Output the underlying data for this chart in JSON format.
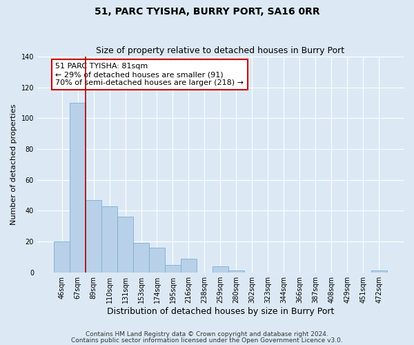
{
  "title": "51, PARC TYISHA, BURRY PORT, SA16 0RR",
  "subtitle": "Size of property relative to detached houses in Burry Port",
  "xlabel": "Distribution of detached houses by size in Burry Port",
  "ylabel": "Number of detached properties",
  "bar_labels": [
    "46sqm",
    "67sqm",
    "89sqm",
    "110sqm",
    "131sqm",
    "153sqm",
    "174sqm",
    "195sqm",
    "216sqm",
    "238sqm",
    "259sqm",
    "280sqm",
    "302sqm",
    "323sqm",
    "344sqm",
    "366sqm",
    "387sqm",
    "408sqm",
    "429sqm",
    "451sqm",
    "472sqm"
  ],
  "bar_values": [
    20,
    110,
    47,
    43,
    36,
    19,
    16,
    5,
    9,
    0,
    4,
    1,
    0,
    0,
    0,
    0,
    0,
    0,
    0,
    0,
    1
  ],
  "bar_color": "#b8d0e8",
  "bar_edge_color": "#7aafd4",
  "ylim": [
    0,
    140
  ],
  "yticks": [
    0,
    20,
    40,
    60,
    80,
    100,
    120,
    140
  ],
  "property_line_x": 1.5,
  "property_line_color": "#aa0000",
  "annotation_title": "51 PARC TYISHA: 81sqm",
  "annotation_line1": "← 29% of detached houses are smaller (91)",
  "annotation_line2": "70% of semi-detached houses are larger (218) →",
  "annotation_box_color": "#ffffff",
  "annotation_box_edge": "#cc0000",
  "footer1": "Contains HM Land Registry data © Crown copyright and database right 2024.",
  "footer2": "Contains public sector information licensed under the Open Government Licence v3.0.",
  "background_color": "#dce9f5",
  "plot_bg_color": "#dce9f5",
  "title_fontsize": 10,
  "subtitle_fontsize": 9,
  "ylabel_fontsize": 8,
  "xlabel_fontsize": 9,
  "tick_fontsize": 7,
  "annotation_fontsize": 8,
  "footer_fontsize": 6.5
}
